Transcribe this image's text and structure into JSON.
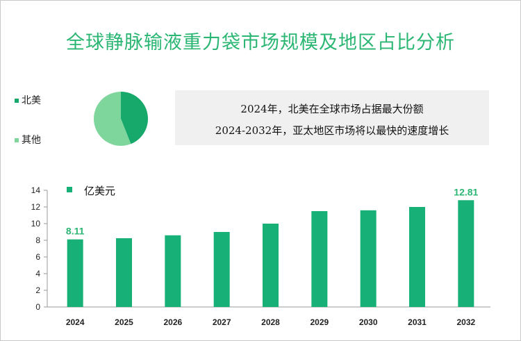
{
  "title": "全球静脉输液重力袋市场规模及地区占比分析",
  "pie": {
    "legend": [
      {
        "label": "北美",
        "color": "#17a86b"
      },
      {
        "label": "其他",
        "color": "#7fd69c"
      }
    ],
    "values": [
      44,
      56
    ]
  },
  "info": {
    "line1": "2024年，北美在全球市场占据最大份额",
    "line2": "2024-2032年，亚太地区市场将以最快的速度增长"
  },
  "chart_data": {
    "type": "bar",
    "categories": [
      "2024",
      "2025",
      "2026",
      "2027",
      "2028",
      "2029",
      "2030",
      "2031",
      "2032"
    ],
    "series": [
      {
        "name": "亿美元",
        "values": [
          8.11,
          8.25,
          8.6,
          9.0,
          10.0,
          11.5,
          11.6,
          12.0,
          12.81
        ]
      }
    ],
    "data_labels": {
      "0": "8.11",
      "8": "12.81"
    },
    "ylim": [
      0,
      14
    ],
    "yticks": [
      "0",
      "2",
      "4",
      "6",
      "8",
      "10",
      "12",
      "14"
    ],
    "bar_color": "#17b076",
    "label_color": "#2bb673",
    "grid": false,
    "legend_position": "top-left"
  }
}
